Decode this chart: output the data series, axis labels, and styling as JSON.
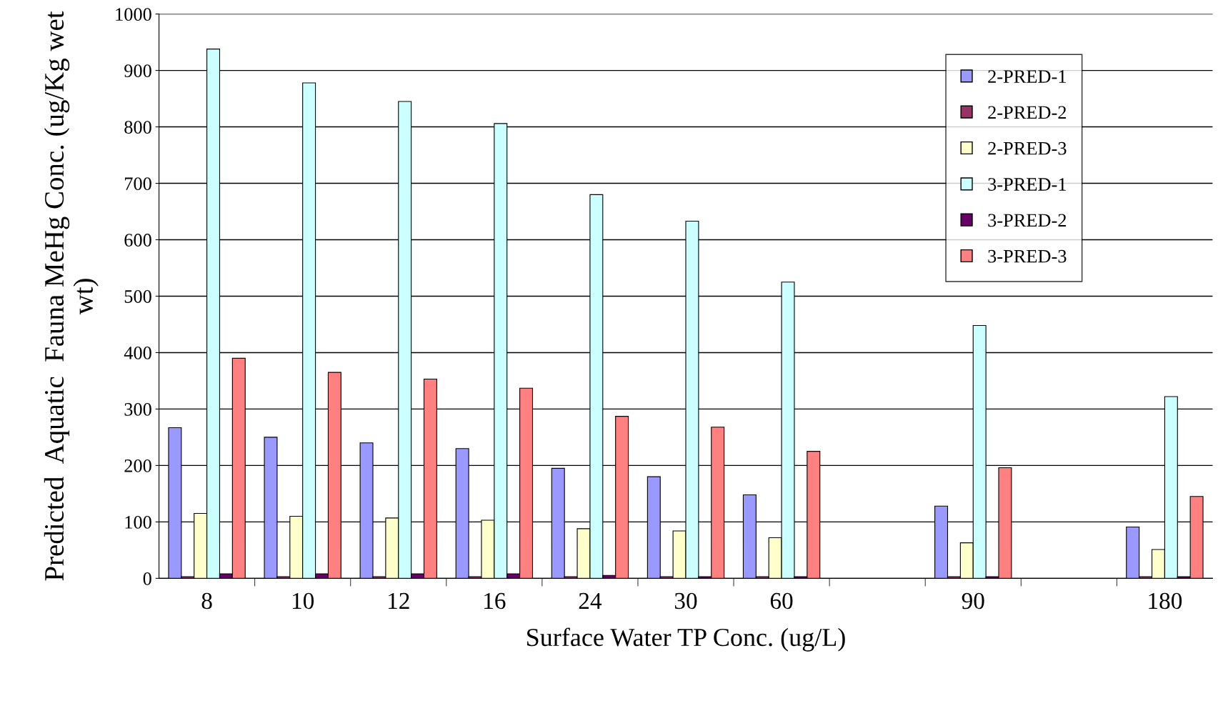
{
  "chart_data": {
    "type": "bar",
    "xlabel": "Surface Water TP Conc. (ug/L)",
    "ylabel": "Predicted  Aquatic  Fauna MeHg Conc. (ug/Kg wet wt)",
    "categories": [
      "8",
      "10",
      "12",
      "16",
      "24",
      "30",
      "60",
      null,
      "90",
      null,
      "180"
    ],
    "series": [
      {
        "name": "2-PRED-1",
        "color": "#9999ff",
        "values": [
          267,
          250,
          240,
          230,
          195,
          180,
          148,
          null,
          128,
          null,
          91
        ]
      },
      {
        "name": "2-PRED-2",
        "color": "#993366",
        "values": [
          3,
          3,
          3,
          3,
          3,
          3,
          3,
          null,
          3,
          null,
          3
        ]
      },
      {
        "name": "2-PRED-3",
        "color": "#ffffcc",
        "values": [
          115,
          110,
          107,
          103,
          88,
          84,
          72,
          null,
          63,
          null,
          51
        ]
      },
      {
        "name": "3-PRED-1",
        "color": "#ccffff",
        "values": [
          938,
          878,
          845,
          806,
          680,
          633,
          525,
          null,
          448,
          null,
          322
        ]
      },
      {
        "name": "3-PRED-2",
        "color": "#660066",
        "values": [
          8,
          8,
          8,
          8,
          5,
          3,
          3,
          null,
          3,
          null,
          3
        ]
      },
      {
        "name": "3-PRED-3",
        "color": "#ff8080",
        "values": [
          390,
          365,
          353,
          337,
          287,
          268,
          225,
          null,
          196,
          null,
          145
        ]
      }
    ],
    "ylim": [
      0,
      1000
    ],
    "yticks": [
      0,
      100,
      200,
      300,
      400,
      500,
      600,
      700,
      800,
      900,
      1000
    ],
    "grid": "y",
    "legend": "top right"
  }
}
